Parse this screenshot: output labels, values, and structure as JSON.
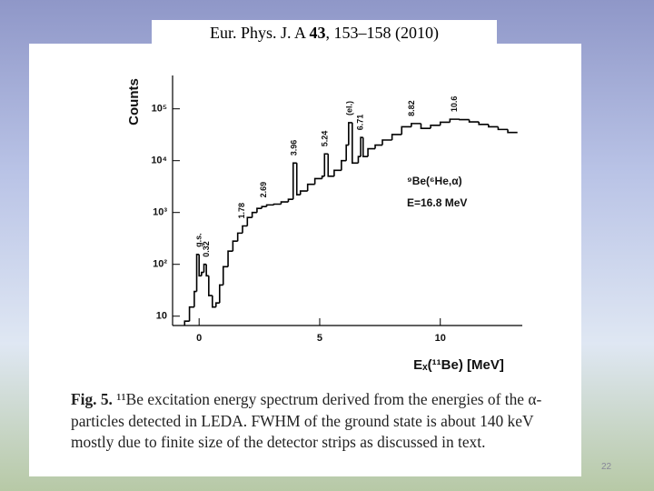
{
  "citation": {
    "journal": "Eur. Phys. J. A",
    "volume": "43",
    "pages": "153–158 (2010)"
  },
  "slide_number": "22",
  "caption": {
    "label": "Fig. 5.",
    "text": "¹¹Be excitation energy spectrum derived from the energies of the α-particles detected in LEDA. FWHM of the ground state is about 140 keV mostly due to finite size of the detector strips as discussed in text."
  },
  "chart_data": {
    "type": "histogram",
    "y_label": "Counts",
    "x_label": "Eₓ(¹¹Be) [MeV]",
    "reaction": "⁹Be(⁶He,α)",
    "energy": "E=16.8 MeV",
    "bins": [
      -0.6,
      -0.4,
      -0.2,
      -0.1,
      0,
      0.1,
      0.2,
      0.3,
      0.4,
      0.55,
      0.7,
      0.85,
      1.0,
      1.2,
      1.4,
      1.6,
      1.8,
      2.0,
      2.2,
      2.4,
      2.6,
      2.8,
      3.1,
      3.4,
      3.7,
      3.9,
      4.05,
      4.2,
      4.5,
      4.8,
      5.1,
      5.2,
      5.35,
      5.6,
      5.9,
      6.1,
      6.2,
      6.35,
      6.6,
      6.7,
      6.8,
      7.0,
      7.3,
      7.6,
      8.0,
      8.4,
      8.8,
      9.2,
      9.6,
      10.0,
      10.4,
      10.8,
      11.2,
      11.6,
      12.0,
      12.4,
      12.8,
      13.2
    ],
    "counts": [
      8,
      15,
      30,
      155,
      60,
      70,
      100,
      60,
      25,
      15,
      18,
      40,
      90,
      180,
      280,
      400,
      550,
      800,
      1000,
      1200,
      1300,
      1400,
      1450,
      1600,
      1800,
      9000,
      2200,
      2600,
      3500,
      4500,
      5000,
      13500,
      5000,
      6500,
      10000,
      20000,
      54000,
      9000,
      12000,
      28000,
      12000,
      17000,
      20000,
      25000,
      32000,
      45000,
      52000,
      42000,
      48000,
      55000,
      63000,
      62000,
      56000,
      50000,
      45000,
      40000,
      35000
    ],
    "color": "#000000",
    "log_y": true,
    "xlim": [
      -1.1,
      13.4
    ],
    "ylim": [
      6.6,
      440000
    ],
    "xticks": [
      0,
      5,
      10
    ],
    "yticks": [
      10,
      {
        "value": 100,
        "label": "10²"
      },
      {
        "value": 1000,
        "label": "10³"
      },
      {
        "value": 10000,
        "label": "10⁴"
      },
      {
        "value": 100000,
        "label": "10⁵"
      }
    ],
    "annotations": [
      {
        "text": "g.s.",
        "x": 0
      },
      {
        "text": "0.32",
        "x": 0.32
      },
      {
        "text": "1.78",
        "x": 1.78
      },
      {
        "text": "2.69",
        "x": 2.69
      },
      {
        "text": "3.96",
        "x": 3.96
      },
      {
        "text": "5.24",
        "x": 5.24
      },
      {
        "text": "(el.)",
        "x": 6.25
      },
      {
        "text": "6.71",
        "x": 6.71
      },
      {
        "text": "8.82",
        "x": 8.82
      },
      {
        "text": "10.6",
        "x": 10.6
      }
    ]
  }
}
